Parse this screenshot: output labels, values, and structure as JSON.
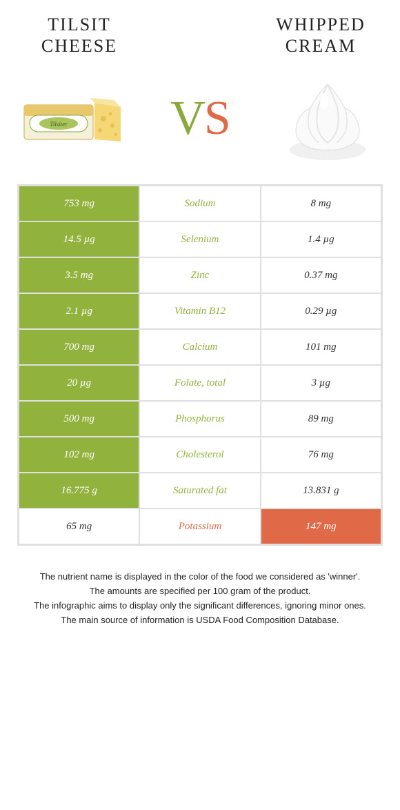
{
  "left": {
    "title": "TILSIT CHEESE",
    "color": "#92b23e"
  },
  "right": {
    "title": "WHIPPED CREAM",
    "color": "#e06a47"
  },
  "vs": {
    "v": "V",
    "s": "S"
  },
  "rows": [
    {
      "nutrient": "Sodium",
      "left": "753 mg",
      "right": "8 mg",
      "winner": "left"
    },
    {
      "nutrient": "Selenium",
      "left": "14.5 µg",
      "right": "1.4 µg",
      "winner": "left"
    },
    {
      "nutrient": "Zinc",
      "left": "3.5 mg",
      "right": "0.37 mg",
      "winner": "left"
    },
    {
      "nutrient": "Vitamin B12",
      "left": "2.1 µg",
      "right": "0.29 µg",
      "winner": "left"
    },
    {
      "nutrient": "Calcium",
      "left": "700 mg",
      "right": "101 mg",
      "winner": "left"
    },
    {
      "nutrient": "Folate, total",
      "left": "20 µg",
      "right": "3 µg",
      "winner": "left"
    },
    {
      "nutrient": "Phosphorus",
      "left": "500 mg",
      "right": "89 mg",
      "winner": "left"
    },
    {
      "nutrient": "Cholesterol",
      "left": "102 mg",
      "right": "76 mg",
      "winner": "left"
    },
    {
      "nutrient": "Saturated fat",
      "left": "16.775 g",
      "right": "13.831 g",
      "winner": "left"
    },
    {
      "nutrient": "Potassium",
      "left": "65 mg",
      "right": "147 mg",
      "winner": "right"
    }
  ],
  "footer": {
    "line1": "The nutrient name is displayed in the color of the food we considered as 'winner'.",
    "line2": "The amounts are specified per 100 gram of the product.",
    "line3": "The infographic aims to display only the significant differences, ignoring minor ones.",
    "line4": "The main source of information is USDA Food Composition Database."
  }
}
